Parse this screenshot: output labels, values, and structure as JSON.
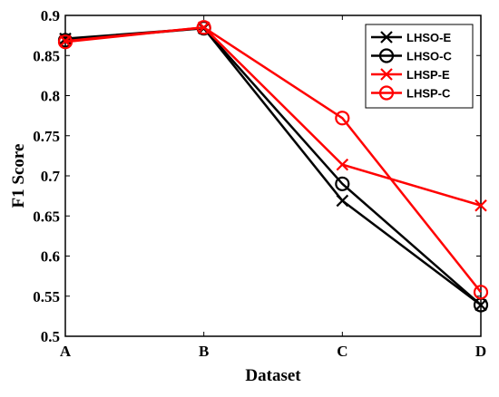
{
  "chart_data": {
    "type": "line",
    "title": "",
    "xlabel": "Dataset",
    "ylabel": "F1 Score",
    "categories": [
      "A",
      "B",
      "C",
      "D"
    ],
    "ylim": [
      0.5,
      0.9
    ],
    "yticks": [
      "0.5",
      "0.55",
      "0.6",
      "0.65",
      "0.7",
      "0.75",
      "0.8",
      "0.85",
      "0.9"
    ],
    "grid": false,
    "legend_position": "top-right",
    "series": [
      {
        "name": "LHSO-E",
        "values": [
          0.871,
          0.884,
          0.669,
          0.539
        ],
        "color": "#000000",
        "marker": "x"
      },
      {
        "name": "LHSO-C",
        "values": [
          0.869,
          0.884,
          0.69,
          0.539
        ],
        "color": "#000000",
        "marker": "o"
      },
      {
        "name": "LHSP-E",
        "values": [
          0.868,
          0.885,
          0.714,
          0.663
        ],
        "color": "#ff0000",
        "marker": "x"
      },
      {
        "name": "LHSP-C",
        "values": [
          0.867,
          0.885,
          0.772,
          0.555
        ],
        "color": "#ff0000",
        "marker": "o"
      }
    ]
  }
}
